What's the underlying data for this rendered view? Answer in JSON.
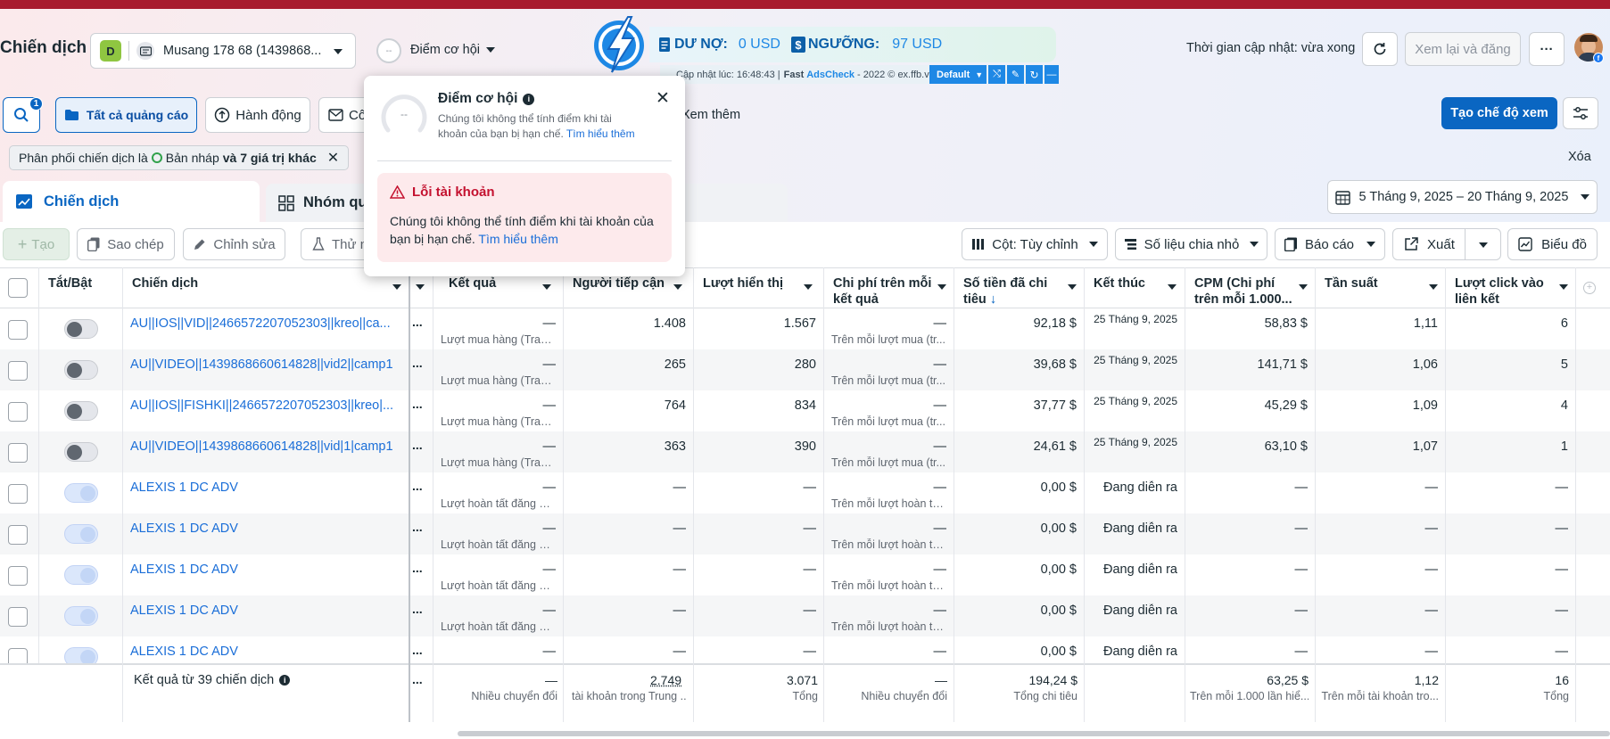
{
  "header": {
    "title": "Chiến dịch",
    "account_initial": "D",
    "account_name": "Musang 178 68 (1439868...",
    "opportunity_score_label": "Điểm cơ hội",
    "opportunity_score_value": "--",
    "update_time": "Thời gian cập nhật: vừa xong",
    "review_publish": "Xem lại và đăng",
    "more": "···"
  },
  "extension": {
    "debt_label": "DƯ NỢ:",
    "debt_value": "0 USD",
    "threshold_label": "NGƯỠNG:",
    "threshold_value": "97 USD",
    "updated": "Cập nhật lúc: 16:48:43 |",
    "brand_fast": "Fast",
    "brand_name": "AdsCheck",
    "copyright": "- 2022 © ex.ffb.vn",
    "mode": "Default",
    "minimize": "—"
  },
  "popup": {
    "title": "Điểm cơ hội",
    "score": "--",
    "desc": "Chúng tôi không thể tính điểm khi tài khoản của bạn bị hạn chế.",
    "learn_more": "Tìm hiểu thêm",
    "error_title": "Lỗi tài khoản",
    "error_desc": "Chúng tôi không thể tính điểm khi tài khoản của bạn bị hạn chế.",
    "error_link": "Tìm hiểu thêm"
  },
  "toolbar1": {
    "search_badge": "1",
    "all_ads": "Tất cả quảng cáo",
    "actions": "Hành động",
    "partial": "Cô",
    "see_more": "Xem thêm",
    "create_view": "Tạo chế độ xem"
  },
  "filter": {
    "prefix": "Phân phối chiến dịch là",
    "draft": "Bản nháp",
    "more": "và 7 giá trị khác",
    "clear": "Xóa"
  },
  "tabs": {
    "campaigns": "Chiến dịch",
    "adsets": "Nhóm quả",
    "date_range": "5 Tháng 9, 2025 – 20 Tháng 9, 2025"
  },
  "toolbar2": {
    "create": "Tạo",
    "copy": "Sao chép",
    "edit": "Chỉnh sửa",
    "test": "Thử n",
    "columns": "Cột: Tùy chỉnh",
    "breakdown": "Số liệu chia nhỏ",
    "reports": "Báo cáo",
    "export": "Xuất",
    "charts": "Biểu đồ"
  },
  "table": {
    "headers": {
      "toggle": "Tắt/Bật",
      "campaign": "Chiến dịch",
      "results": "Kết quả",
      "reach": "Người tiếp cận",
      "impressions": "Lượt hiển thị",
      "cpr_line1": "Chi phí trên mỗi",
      "cpr_line2": "kết quả",
      "spent_line1": "Số tiền đã chi",
      "spent_line2": "tiêu",
      "ends": "Kết thúc",
      "cpm_line1": "CPM (Chi phí",
      "cpm_line2": "trên mỗi 1.000...",
      "frequency": "Tần suất",
      "clicks_line1": "Lượt click vào",
      "clicks_line2": "liên kết"
    },
    "rows": [
      {
        "name": "AU||IOS||VID||2466572207052303||kreo||ca...",
        "on": false,
        "dots": "...",
        "result": "—",
        "result_sub": "Lượt mua hàng (Tran...",
        "reach": "1.408",
        "impr": "1.567",
        "cpr": "—",
        "cpr_sub": "Trên mỗi lượt mua (tr...",
        "spent": "92,18 $",
        "ends": "25 Tháng 9, 2025",
        "cpm": "58,83 $",
        "freq": "1,11",
        "clicks": "6"
      },
      {
        "name": "AU||VIDEO||1439868660614828||vid2||camp1",
        "on": false,
        "dots": "...",
        "result": "—",
        "result_sub": "Lượt mua hàng (Tran...",
        "reach": "265",
        "impr": "280",
        "cpr": "—",
        "cpr_sub": "Trên mỗi lượt mua (tr...",
        "spent": "39,68 $",
        "ends": "25 Tháng 9, 2025",
        "cpm": "141,71 $",
        "freq": "1,06",
        "clicks": "5"
      },
      {
        "name": "AU||IOS||FISHKI||2466572207052303||kreo|...",
        "on": false,
        "dots": "...",
        "result": "—",
        "result_sub": "Lượt mua hàng (Tran...",
        "reach": "764",
        "impr": "834",
        "cpr": "—",
        "cpr_sub": "Trên mỗi lượt mua (tr...",
        "spent": "37,77 $",
        "ends": "25 Tháng 9, 2025",
        "cpm": "45,29 $",
        "freq": "1,09",
        "clicks": "4"
      },
      {
        "name": "AU||VIDEO||1439868660614828||vid|1|camp1",
        "on": false,
        "dots": "...",
        "result": "—",
        "result_sub": "Lượt mua hàng (Tran...",
        "reach": "363",
        "impr": "390",
        "cpr": "—",
        "cpr_sub": "Trên mỗi lượt mua (tr...",
        "spent": "24,61 $",
        "ends": "25 Tháng 9, 2025",
        "cpm": "63,10 $",
        "freq": "1,07",
        "clicks": "1"
      },
      {
        "name": "ALEXIS 1 DC ADV",
        "on": true,
        "dots": "...",
        "result": "—",
        "result_sub": "Lượt hoàn tất đăng ký...",
        "reach": "—",
        "impr": "—",
        "cpr": "—",
        "cpr_sub": "Trên mỗi lượt hoàn tất...",
        "spent": "0,00 $",
        "ends": "Đang diễn ra",
        "cpm": "—",
        "freq": "—",
        "clicks": "—"
      },
      {
        "name": "ALEXIS 1 DC ADV",
        "on": true,
        "dots": "...",
        "result": "—",
        "result_sub": "Lượt hoàn tất đăng ký...",
        "reach": "—",
        "impr": "—",
        "cpr": "—",
        "cpr_sub": "Trên mỗi lượt hoàn tất...",
        "spent": "0,00 $",
        "ends": "Đang diễn ra",
        "cpm": "—",
        "freq": "—",
        "clicks": "—"
      },
      {
        "name": "ALEXIS 1 DC ADV",
        "on": true,
        "dots": "...",
        "result": "—",
        "result_sub": "Lượt hoàn tất đăng ký...",
        "reach": "—",
        "impr": "—",
        "cpr": "—",
        "cpr_sub": "Trên mỗi lượt hoàn tất...",
        "spent": "0,00 $",
        "ends": "Đang diễn ra",
        "cpm": "—",
        "freq": "—",
        "clicks": "—"
      },
      {
        "name": "ALEXIS 1 DC ADV",
        "on": true,
        "dots": "...",
        "result": "—",
        "result_sub": "Lượt hoàn tất đăng ký...",
        "reach": "—",
        "impr": "—",
        "cpr": "—",
        "cpr_sub": "Trên mỗi lượt hoàn tất...",
        "spent": "0,00 $",
        "ends": "Đang diễn ra",
        "cpm": "—",
        "freq": "—",
        "clicks": "—"
      },
      {
        "name": "ALEXIS 1 DC ADV",
        "on": true,
        "dots": "...",
        "result": "—",
        "result_sub": "",
        "reach": "—",
        "impr": "—",
        "cpr": "—",
        "cpr_sub": "",
        "spent": "0,00 $",
        "ends": "Đang diễn ra",
        "cpm": "—",
        "freq": "—",
        "clicks": "—"
      }
    ],
    "footer": {
      "label": "Kết quả từ 39 chiến dịch",
      "dots": "...",
      "result": "—",
      "result_sub": "Nhiều chuyển đổi",
      "reach": "2.749",
      "reach_sub": "tài khoản trong Trung ...",
      "impr": "3.071",
      "impr_sub": "Tổng",
      "cpr": "—",
      "cpr_sub": "Nhiều chuyển đổi",
      "spent": "194,24 $",
      "spent_sub": "Tổng chi tiêu",
      "cpm": "63,25 $",
      "cpm_sub": "Trên mỗi 1.000 lần hiể...",
      "freq": "1,12",
      "freq_sub": "Trên mỗi tài khoản tro...",
      "clicks": "16",
      "clicks_sub": "Tổng"
    }
  },
  "colors": {
    "brand_blue": "#0a66c2",
    "link_blue": "#1a6ed8",
    "top_bar": "#a81b2e",
    "error_bg": "#fdeaec",
    "error_text": "#c4112f"
  }
}
